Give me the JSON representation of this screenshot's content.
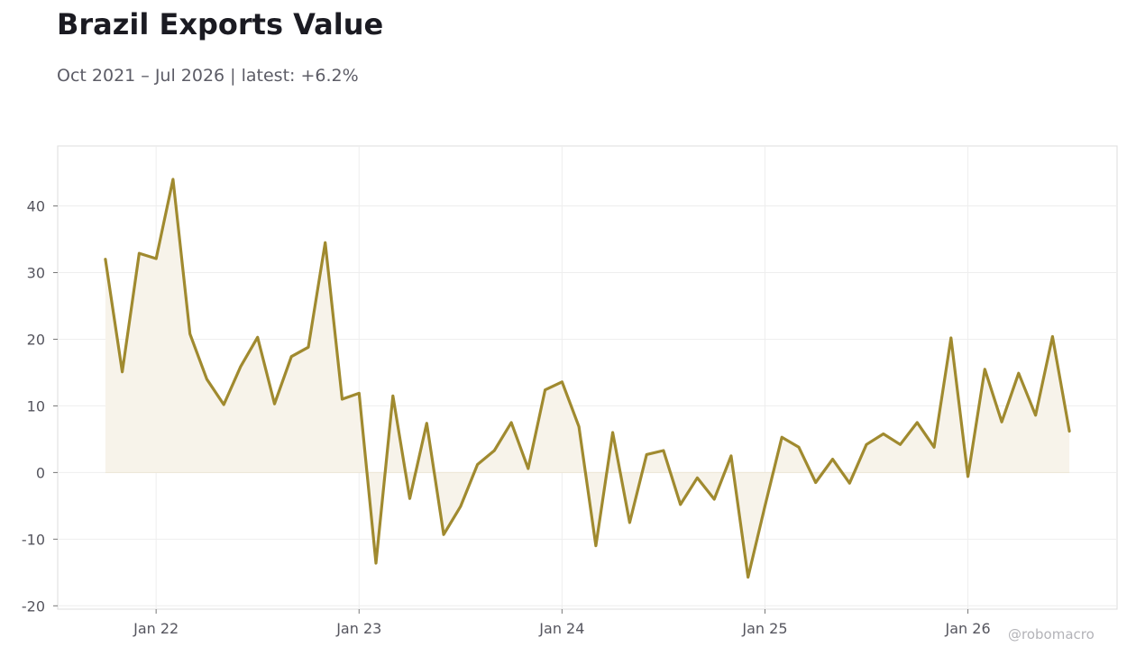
{
  "header": {
    "title": "Brazil Exports Value",
    "subtitle": "Oct 2021 – Jul 2026 | latest: +6.2%"
  },
  "watermark": "@robomacro",
  "colors": {
    "line": "#a08a2f",
    "fill": "#f7f3ea",
    "grid": "#eeeeee",
    "frame": "#dddddd"
  },
  "chart_data": {
    "type": "area",
    "title": "Brazil Exports Value",
    "subtitle": "Oct 2021 – Jul 2026 | latest: +6.2%",
    "xlabel": "",
    "ylabel": "",
    "x_start": "2021-10",
    "x_end": "2026-07",
    "ylim": [
      -20.5,
      49
    ],
    "yticks": [
      -20,
      -10,
      0,
      10,
      20,
      30,
      40
    ],
    "ytick_labels": [
      "-20",
      "-10",
      "0",
      "10",
      "20",
      "30",
      "40"
    ],
    "xticks": [
      "2022-01",
      "2023-01",
      "2024-01",
      "2025-01",
      "2026-01"
    ],
    "xtick_labels": [
      "Jan 22",
      "Jan 23",
      "Jan 24",
      "Jan 25",
      "Jan 26"
    ],
    "grid": true,
    "legend": false,
    "series": [
      {
        "dates": [
          "2021-10",
          "2021-11",
          "2021-12",
          "2022-01",
          "2022-02",
          "2022-03",
          "2022-04",
          "2022-05",
          "2022-06",
          "2022-07",
          "2022-08",
          "2022-09",
          "2022-10",
          "2022-11",
          "2022-12",
          "2023-01",
          "2023-02",
          "2023-03",
          "2023-04",
          "2023-05",
          "2023-06",
          "2023-07",
          "2023-08",
          "2023-09",
          "2023-10",
          "2023-11",
          "2023-12",
          "2024-01",
          "2024-02",
          "2024-03",
          "2024-04",
          "2024-05",
          "2024-06",
          "2024-07",
          "2024-08",
          "2024-09",
          "2024-10",
          "2024-11",
          "2024-12",
          "2025-01",
          "2025-02",
          "2025-03",
          "2025-04",
          "2025-05",
          "2025-06",
          "2025-07",
          "2025-08",
          "2025-09",
          "2025-10",
          "2025-11",
          "2025-12",
          "2026-01",
          "2026-02",
          "2026-03",
          "2026-04",
          "2026-05",
          "2026-06",
          "2026-07"
        ],
        "values": [
          32.0,
          15.1,
          32.9,
          32.1,
          44.0,
          20.8,
          14.0,
          10.2,
          15.9,
          20.3,
          10.3,
          17.4,
          18.8,
          34.5,
          11.0,
          11.9,
          -13.6,
          11.5,
          -3.9,
          7.4,
          -9.3,
          -5.1,
          1.2,
          3.3,
          7.5,
          0.6,
          12.4,
          13.6,
          6.9,
          -11.0,
          6.0,
          -7.5,
          2.7,
          3.3,
          -4.8,
          -0.8,
          -4.0,
          2.5,
          -15.7,
          -5.0,
          5.3,
          3.8,
          -1.5,
          2.0,
          -1.6,
          4.2,
          5.8,
          4.2,
          7.5,
          3.8,
          20.2,
          -0.6,
          15.5,
          7.6,
          14.9,
          8.6,
          20.4,
          6.2
        ]
      }
    ]
  }
}
